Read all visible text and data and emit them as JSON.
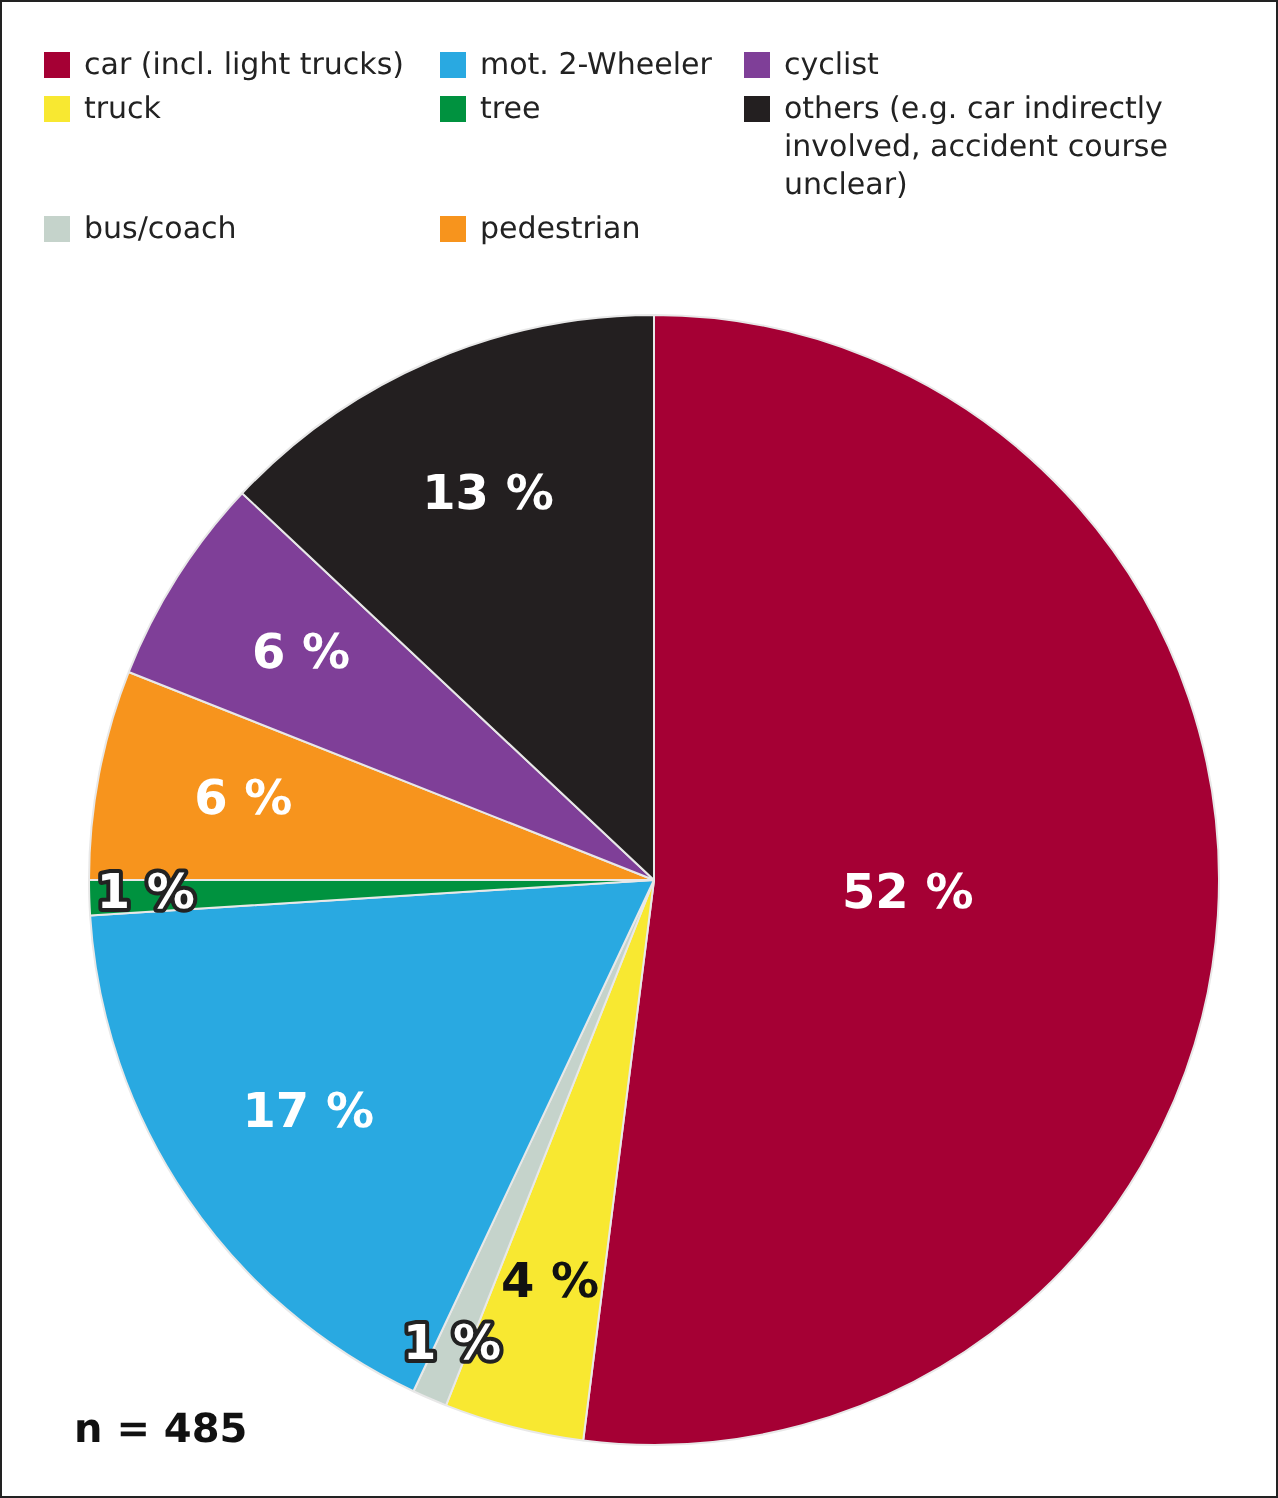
{
  "chart_data": {
    "type": "pie",
    "categories": [
      "car (incl. light trucks)",
      "truck",
      "bus/coach",
      "mot. 2-Wheeler",
      "tree",
      "pedestrian",
      "cyclist",
      "others (e.g. car indirectly involved, accident course unclear)"
    ],
    "values": [
      52,
      4,
      1,
      17,
      1,
      6,
      6,
      13
    ],
    "colors": [
      "#a50034",
      "#f8e831",
      "#c5d3cb",
      "#29a9e1",
      "#00923f",
      "#f7941d",
      "#7f3f98",
      "#231f20"
    ],
    "value_labels": [
      "52 %",
      "4 %",
      "1 %",
      "17 %",
      "1 %",
      "6 %",
      "6 %",
      "13 %"
    ],
    "legend": "top",
    "annotations": [
      "n = 485"
    ]
  }
}
